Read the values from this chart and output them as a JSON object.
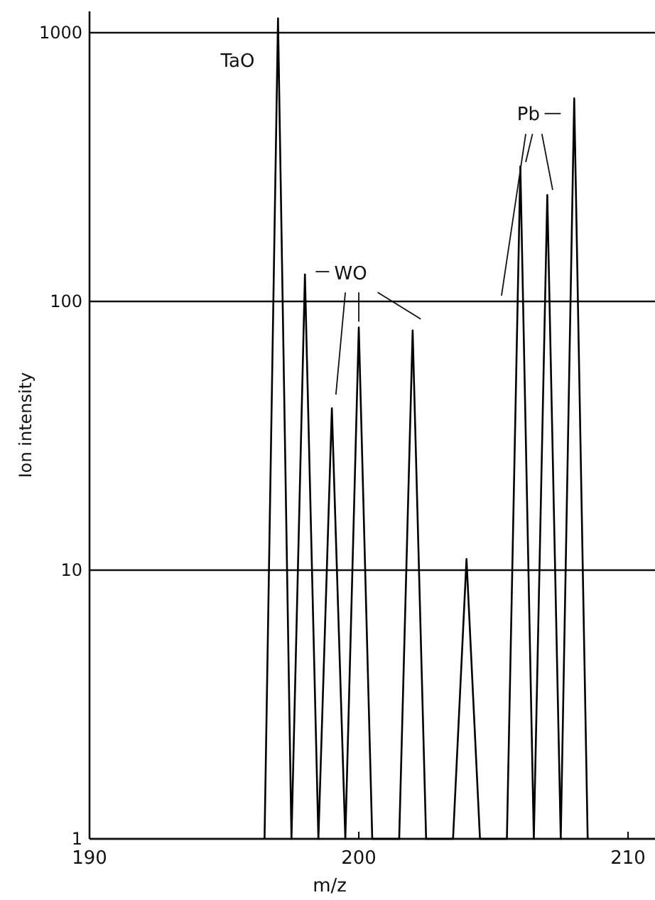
{
  "chart_data": {
    "type": "line",
    "xlabel": "m/z",
    "ylabel": "Ion intensity",
    "series": [
      {
        "color": "#000000",
        "x": [
          196.5,
          197,
          197.5,
          198,
          198.5,
          199,
          199.5,
          200,
          200.5,
          201.5,
          202,
          202.5,
          203.5,
          204,
          204.5,
          205.5,
          206,
          206.5,
          207,
          207.5,
          208,
          208.5
        ],
        "values": [
          1,
          1130,
          1,
          126,
          1,
          40,
          1,
          80,
          1,
          1,
          78,
          1,
          1,
          11,
          1,
          1,
          318,
          1,
          249,
          1,
          570,
          1
        ]
      }
    ],
    "xlim": [
      190,
      211
    ],
    "xticks": [
      190,
      200,
      210
    ],
    "ylim": [
      1,
      1200
    ],
    "yticks": [
      1,
      10,
      100,
      1000
    ],
    "log": "y",
    "grid": "y",
    "marker": "none",
    "line_style": "solid",
    "annotations": [
      {
        "text": "TaO",
        "x": 197,
        "y": 1130
      },
      {
        "text": "WO",
        "x": 200,
        "y": 80
      },
      {
        "text": "Pb",
        "x": 206,
        "y": 318
      }
    ]
  }
}
